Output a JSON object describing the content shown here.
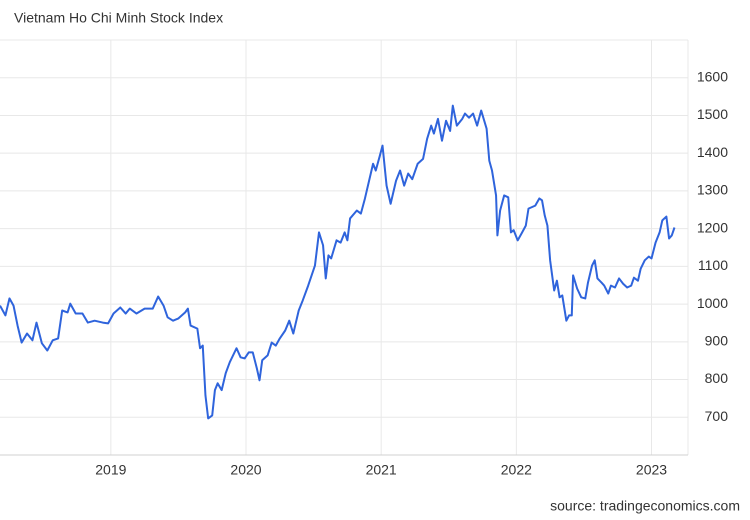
{
  "chart_data": {
    "type": "line",
    "title": "Vietnam Ho Chi Minh Stock Index",
    "source": "source: tradingeconomics.com",
    "color": "#2f64dc",
    "grid": true,
    "xlim": [
      2018.18,
      2023.27
    ],
    "xticks": [
      2019,
      2020,
      2021,
      2022,
      2023
    ],
    "ylim": [
      600,
      1700
    ],
    "yticks": [
      700,
      800,
      900,
      1000,
      1100,
      1200,
      1300,
      1400,
      1500,
      1600
    ],
    "x": [
      2018.18,
      2018.22,
      2018.25,
      2018.28,
      2018.31,
      2018.34,
      2018.38,
      2018.42,
      2018.45,
      2018.49,
      2018.53,
      2018.57,
      2018.61,
      2018.64,
      2018.68,
      2018.7,
      2018.74,
      2018.79,
      2018.83,
      2018.88,
      2018.94,
      2018.98,
      2019.02,
      2019.07,
      2019.11,
      2019.14,
      2019.19,
      2019.25,
      2019.31,
      2019.35,
      2019.39,
      2019.42,
      2019.46,
      2019.5,
      2019.55,
      2019.57,
      2019.59,
      2019.64,
      2019.66,
      2019.68,
      2019.7,
      2019.72,
      2019.75,
      2019.77,
      2019.79,
      2019.82,
      2019.85,
      2019.88,
      2019.93,
      2019.96,
      2019.99,
      2020.02,
      2020.05,
      2020.08,
      2020.1,
      2020.12,
      2020.16,
      2020.19,
      2020.22,
      2020.25,
      2020.29,
      2020.32,
      2020.35,
      2020.39,
      2020.42,
      2020.46,
      2020.51,
      2020.54,
      2020.57,
      2020.59,
      2020.61,
      2020.63,
      2020.67,
      2020.7,
      2020.73,
      2020.75,
      2020.77,
      2020.82,
      2020.85,
      2020.88,
      2020.94,
      2020.96,
      2020.99,
      2021.01,
      2021.04,
      2021.07,
      2021.11,
      2021.14,
      2021.17,
      2021.2,
      2021.23,
      2021.27,
      2021.31,
      2021.34,
      2021.37,
      2021.39,
      2021.42,
      2021.45,
      2021.48,
      2021.51,
      2021.53,
      2021.56,
      2021.6,
      2021.62,
      2021.65,
      2021.68,
      2021.71,
      2021.74,
      2021.78,
      2021.8,
      2021.82,
      2021.85,
      2021.86,
      2021.88,
      2021.91,
      2021.94,
      2021.96,
      2021.98,
      2022.01,
      2022.04,
      2022.07,
      2022.09,
      2022.14,
      2022.17,
      2022.19,
      2022.21,
      2022.23,
      2022.25,
      2022.28,
      2022.3,
      2022.32,
      2022.34,
      2022.37,
      2022.39,
      2022.41,
      2022.42,
      2022.45,
      2022.48,
      2022.51,
      2022.53,
      2022.56,
      2022.58,
      2022.6,
      2022.63,
      2022.65,
      2022.68,
      2022.7,
      2022.73,
      2022.76,
      2022.79,
      2022.82,
      2022.85,
      2022.87,
      2022.9,
      2022.92,
      2022.95,
      2022.98,
      2023.0,
      2023.03,
      2023.06,
      2023.08,
      2023.11,
      2023.13,
      2023.15,
      2023.17
    ],
    "values": [
      996,
      970,
      1015,
      996,
      943,
      898,
      922,
      904,
      951,
      896,
      877,
      904,
      909,
      983,
      978,
      1001,
      975,
      975,
      951,
      956,
      951,
      949,
      975,
      991,
      975,
      988,
      975,
      988,
      988,
      1020,
      996,
      965,
      956,
      962,
      978,
      988,
      943,
      935,
      883,
      890,
      758,
      697,
      705,
      772,
      790,
      772,
      817,
      846,
      883,
      859,
      856,
      872,
      872,
      830,
      798,
      851,
      864,
      898,
      890,
      909,
      930,
      956,
      922,
      983,
      1010,
      1049,
      1102,
      1190,
      1156,
      1068,
      1129,
      1121,
      1169,
      1163,
      1190,
      1169,
      1227,
      1248,
      1240,
      1280,
      1372,
      1354,
      1393,
      1420,
      1314,
      1266,
      1327,
      1354,
      1314,
      1346,
      1331,
      1372,
      1385,
      1438,
      1473,
      1452,
      1491,
      1433,
      1486,
      1459,
      1526,
      1473,
      1491,
      1505,
      1494,
      1505,
      1473,
      1513,
      1465,
      1380,
      1354,
      1288,
      1182,
      1248,
      1288,
      1283,
      1190,
      1196,
      1169,
      1188,
      1208,
      1253,
      1261,
      1280,
      1275,
      1235,
      1208,
      1116,
      1036,
      1062,
      1018,
      1023,
      956,
      970,
      970,
      1076,
      1041,
      1018,
      1015,
      1057,
      1102,
      1116,
      1068,
      1057,
      1049,
      1028,
      1049,
      1044,
      1068,
      1054,
      1044,
      1049,
      1070,
      1062,
      1094,
      1116,
      1126,
      1121,
      1163,
      1190,
      1222,
      1232,
      1174,
      1182,
      1203
    ]
  }
}
